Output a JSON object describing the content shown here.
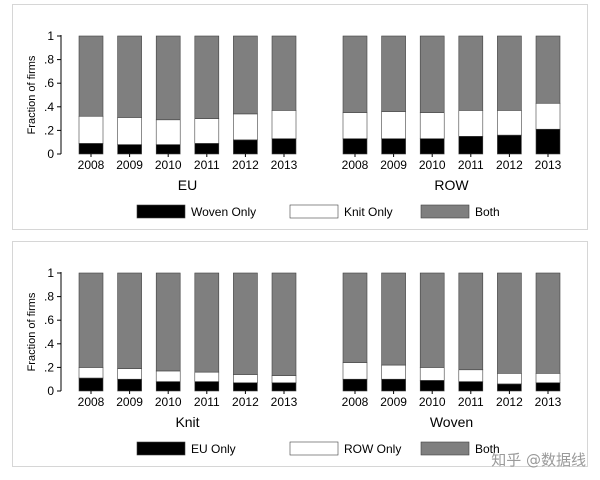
{
  "colors": {
    "first_component": "#000000",
    "second_component": "#ffffff",
    "third_component": "#7f7f7f",
    "stroke": "#404040"
  },
  "watermark": "知乎 @数据线",
  "chart_data": [
    {
      "type": "bar",
      "stacked": true,
      "ylabel": "Fraction of firms",
      "ylim": [
        0,
        1
      ],
      "yticks": [
        "0",
        ".2",
        ".4",
        ".6",
        ".8",
        "1"
      ],
      "groups": [
        {
          "label": "EU",
          "categories": [
            "2008",
            "2009",
            "2010",
            "2011",
            "2012",
            "2013"
          ],
          "series": [
            {
              "name": "Woven Only",
              "values": [
                0.09,
                0.08,
                0.08,
                0.09,
                0.12,
                0.13
              ]
            },
            {
              "name": "Knit Only",
              "values": [
                0.23,
                0.23,
                0.21,
                0.21,
                0.22,
                0.24
              ]
            },
            {
              "name": "Both",
              "values": [
                0.68,
                0.69,
                0.71,
                0.7,
                0.66,
                0.63
              ]
            }
          ]
        },
        {
          "label": "ROW",
          "categories": [
            "2008",
            "2009",
            "2010",
            "2011",
            "2012",
            "2013"
          ],
          "series": [
            {
              "name": "Woven Only",
              "values": [
                0.13,
                0.13,
                0.13,
                0.15,
                0.16,
                0.21
              ]
            },
            {
              "name": "Knit Only",
              "values": [
                0.22,
                0.23,
                0.22,
                0.22,
                0.21,
                0.22
              ]
            },
            {
              "name": "Both",
              "values": [
                0.65,
                0.64,
                0.65,
                0.63,
                0.63,
                0.57
              ]
            }
          ]
        }
      ],
      "legend": [
        "Woven Only",
        "Knit Only",
        "Both"
      ],
      "legend_position": "bottom",
      "grid": false
    },
    {
      "type": "bar",
      "stacked": true,
      "ylabel": "Fraction of firms",
      "ylim": [
        0,
        1
      ],
      "yticks": [
        "0",
        ".2",
        ".4",
        ".6",
        ".8",
        "1"
      ],
      "groups": [
        {
          "label": "Knit",
          "categories": [
            "2008",
            "2009",
            "2010",
            "2011",
            "2012",
            "2013"
          ],
          "series": [
            {
              "name": "EU Only",
              "values": [
                0.11,
                0.1,
                0.08,
                0.08,
                0.07,
                0.07
              ]
            },
            {
              "name": "ROW Only",
              "values": [
                0.09,
                0.09,
                0.09,
                0.08,
                0.07,
                0.06
              ]
            },
            {
              "name": "Both",
              "values": [
                0.8,
                0.81,
                0.83,
                0.84,
                0.86,
                0.87
              ]
            }
          ]
        },
        {
          "label": "Woven",
          "categories": [
            "2008",
            "2009",
            "2010",
            "2011",
            "2012",
            "2013"
          ],
          "series": [
            {
              "name": "EU Only",
              "values": [
                0.1,
                0.1,
                0.09,
                0.08,
                0.06,
                0.07
              ]
            },
            {
              "name": "ROW Only",
              "values": [
                0.14,
                0.12,
                0.11,
                0.1,
                0.09,
                0.08
              ]
            },
            {
              "name": "Both",
              "values": [
                0.76,
                0.78,
                0.8,
                0.82,
                0.85,
                0.85
              ]
            }
          ]
        }
      ],
      "legend": [
        "EU Only",
        "ROW Only",
        "Both"
      ],
      "legend_position": "bottom",
      "grid": false
    }
  ]
}
